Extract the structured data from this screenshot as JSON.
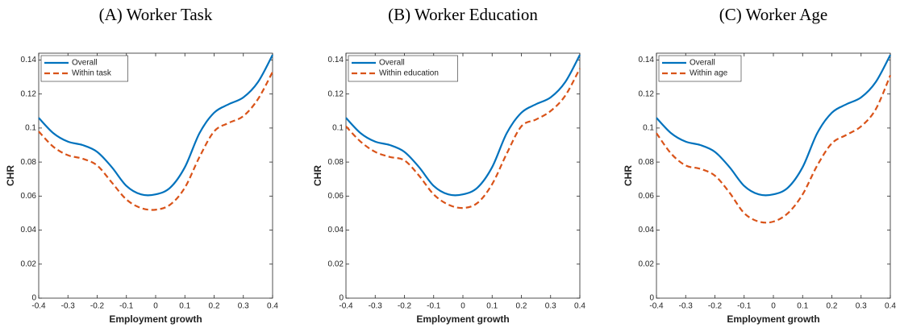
{
  "chart_data": [
    {
      "type": "line",
      "title": "(A) Worker Task",
      "xlabel": "Employment growth",
      "ylabel": "CHR",
      "x": [
        -0.4,
        -0.35,
        -0.3,
        -0.25,
        -0.2,
        -0.15,
        -0.1,
        -0.05,
        0,
        0.05,
        0.1,
        0.15,
        0.2,
        0.25,
        0.3,
        0.35,
        0.4
      ],
      "series": [
        {
          "name": "Overall",
          "color": "#0072bd",
          "dash": false,
          "values": [
            0.106,
            0.097,
            0.092,
            0.09,
            0.086,
            0.077,
            0.066,
            0.061,
            0.061,
            0.065,
            0.077,
            0.097,
            0.109,
            0.114,
            0.118,
            0.127,
            0.143
          ]
        },
        {
          "name": "Within task",
          "color": "#d95319",
          "dash": true,
          "values": [
            0.098,
            0.089,
            0.084,
            0.082,
            0.078,
            0.068,
            0.058,
            0.053,
            0.052,
            0.055,
            0.065,
            0.083,
            0.098,
            0.103,
            0.107,
            0.117,
            0.133
          ]
        }
      ],
      "xlim": [
        -0.4,
        0.4
      ],
      "xticks": [
        -0.4,
        -0.3,
        -0.2,
        -0.1,
        0,
        0.1,
        0.2,
        0.3,
        0.4
      ],
      "ylim": [
        0,
        0.144
      ],
      "yticks": [
        0,
        0.02,
        0.04,
        0.06,
        0.08,
        0.1,
        0.12,
        0.14
      ],
      "legend": "upper-left"
    },
    {
      "type": "line",
      "title": "(B) Worker Education",
      "xlabel": "Employment growth",
      "ylabel": "CHR",
      "x": [
        -0.4,
        -0.35,
        -0.3,
        -0.25,
        -0.2,
        -0.15,
        -0.1,
        -0.05,
        0,
        0.05,
        0.1,
        0.15,
        0.2,
        0.25,
        0.3,
        0.35,
        0.4
      ],
      "series": [
        {
          "name": "Overall",
          "color": "#0072bd",
          "dash": false,
          "values": [
            0.106,
            0.097,
            0.092,
            0.09,
            0.086,
            0.077,
            0.066,
            0.061,
            0.061,
            0.065,
            0.077,
            0.097,
            0.109,
            0.114,
            0.118,
            0.127,
            0.143
          ]
        },
        {
          "name": "Within education",
          "color": "#d95319",
          "dash": true,
          "values": [
            0.101,
            0.092,
            0.086,
            0.083,
            0.081,
            0.072,
            0.061,
            0.055,
            0.053,
            0.056,
            0.067,
            0.085,
            0.101,
            0.105,
            0.11,
            0.119,
            0.135
          ]
        }
      ],
      "xlim": [
        -0.4,
        0.4
      ],
      "xticks": [
        -0.4,
        -0.3,
        -0.2,
        -0.1,
        0,
        0.1,
        0.2,
        0.3,
        0.4
      ],
      "ylim": [
        0,
        0.144
      ],
      "yticks": [
        0,
        0.02,
        0.04,
        0.06,
        0.08,
        0.1,
        0.12,
        0.14
      ],
      "legend": "upper-left"
    },
    {
      "type": "line",
      "title": "(C) Worker Age",
      "xlabel": "Employment growth",
      "ylabel": "CHR",
      "x": [
        -0.4,
        -0.35,
        -0.3,
        -0.25,
        -0.2,
        -0.15,
        -0.1,
        -0.05,
        0,
        0.05,
        0.1,
        0.15,
        0.2,
        0.25,
        0.3,
        0.35,
        0.4
      ],
      "series": [
        {
          "name": "Overall",
          "color": "#0072bd",
          "dash": false,
          "values": [
            0.106,
            0.097,
            0.092,
            0.09,
            0.086,
            0.077,
            0.066,
            0.061,
            0.061,
            0.065,
            0.077,
            0.097,
            0.109,
            0.114,
            0.118,
            0.127,
            0.143
          ]
        },
        {
          "name": "Within age",
          "color": "#d95319",
          "dash": true,
          "values": [
            0.097,
            0.085,
            0.078,
            0.076,
            0.072,
            0.062,
            0.05,
            0.045,
            0.045,
            0.05,
            0.061,
            0.078,
            0.091,
            0.096,
            0.101,
            0.111,
            0.131
          ]
        }
      ],
      "xlim": [
        -0.4,
        0.4
      ],
      "xticks": [
        -0.4,
        -0.3,
        -0.2,
        -0.1,
        0,
        0.1,
        0.2,
        0.3,
        0.4
      ],
      "ylim": [
        0,
        0.144
      ],
      "yticks": [
        0,
        0.02,
        0.04,
        0.06,
        0.08,
        0.1,
        0.12,
        0.14
      ],
      "legend": "upper-left"
    }
  ]
}
